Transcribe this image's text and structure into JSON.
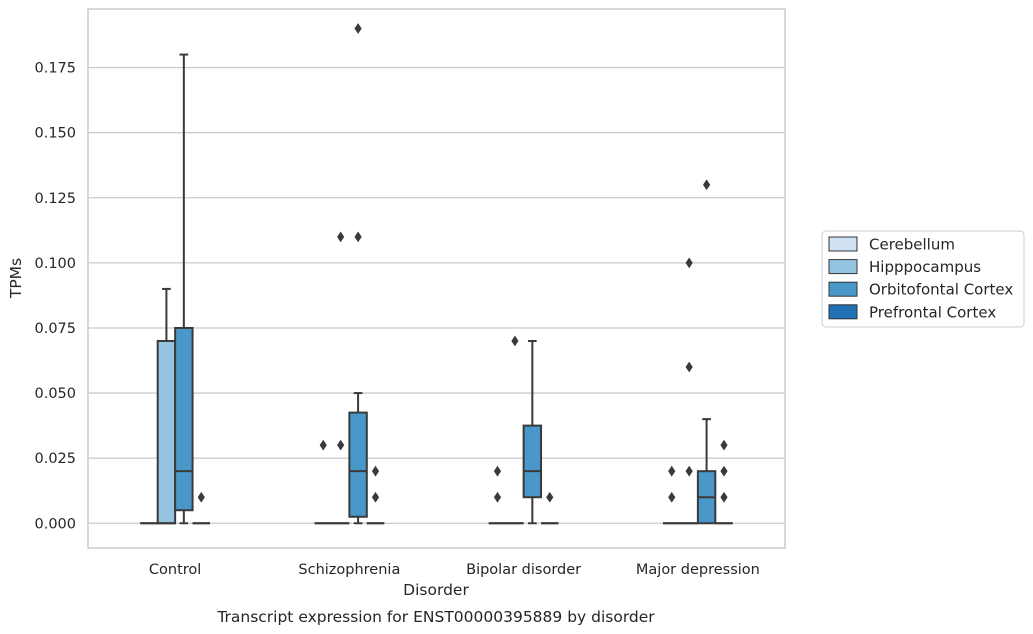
{
  "chart_data": {
    "type": "box",
    "caption": "Transcript expression for ENST00000395889 by disorder",
    "xlabel": "Disorder",
    "ylabel": "TPMs",
    "categories": [
      "Control",
      "Schizophrenia",
      "Bipolar disorder",
      "Major depression"
    ],
    "ylim": [
      -0.0095,
      0.1975
    ],
    "yticks": [
      0.0,
      0.025,
      0.05,
      0.075,
      0.1,
      0.125,
      0.15,
      0.175
    ],
    "ytick_labels": [
      "0.000",
      "0.025",
      "0.050",
      "0.075",
      "0.100",
      "0.125",
      "0.150",
      "0.175"
    ],
    "grid": "horizontal",
    "legend_position": "right",
    "series": [
      {
        "name": "Cerebellum",
        "color": "#d0e1f2",
        "boxes": [
          {
            "q1": 0,
            "median": 0,
            "q3": 0,
            "whislo": 0,
            "whishi": 0,
            "fliers": []
          },
          {
            "q1": 0,
            "median": 0,
            "q3": 0,
            "whislo": 0,
            "whishi": 0,
            "fliers": [
              0.03
            ]
          },
          {
            "q1": 0,
            "median": 0,
            "q3": 0,
            "whislo": 0,
            "whishi": 0,
            "fliers": [
              0.01,
              0.02
            ]
          },
          {
            "q1": 0,
            "median": 0,
            "q3": 0,
            "whislo": 0,
            "whishi": 0,
            "fliers": [
              0.01,
              0.02
            ]
          }
        ]
      },
      {
        "name": "Hipppocampus",
        "color": "#94c4df",
        "boxes": [
          {
            "q1": 0,
            "median": 0,
            "q3": 0.07,
            "whislo": 0,
            "whishi": 0.09,
            "fliers": []
          },
          {
            "q1": 0,
            "median": 0,
            "q3": 0,
            "whislo": 0,
            "whishi": 0,
            "fliers": [
              0.03,
              0.11
            ]
          },
          {
            "q1": 0,
            "median": 0,
            "q3": 0,
            "whislo": 0,
            "whishi": 0,
            "fliers": [
              0.07
            ]
          },
          {
            "q1": 0,
            "median": 0,
            "q3": 0,
            "whislo": 0,
            "whishi": 0,
            "fliers": [
              0.02,
              0.06,
              0.1
            ]
          }
        ]
      },
      {
        "name": "Orbitofontal Cortex",
        "color": "#4a98c9",
        "boxes": [
          {
            "q1": 0.005,
            "median": 0.02,
            "q3": 0.075,
            "whislo": 0,
            "whishi": 0.18,
            "fliers": []
          },
          {
            "q1": 0.0025,
            "median": 0.02,
            "q3": 0.0425,
            "whislo": 0,
            "whishi": 0.05,
            "fliers": [
              0.11,
              0.19
            ]
          },
          {
            "q1": 0.01,
            "median": 0.02,
            "q3": 0.0375,
            "whislo": 0,
            "whishi": 0.07,
            "fliers": []
          },
          {
            "q1": 0,
            "median": 0.01,
            "q3": 0.02,
            "whislo": 0,
            "whishi": 0.04,
            "fliers": [
              0.13
            ]
          }
        ]
      },
      {
        "name": "Prefrontal Cortex",
        "color": "#2171b5",
        "boxes": [
          {
            "q1": 0,
            "median": 0,
            "q3": 0,
            "whislo": 0,
            "whishi": 0,
            "fliers": [
              0.01
            ]
          },
          {
            "q1": 0,
            "median": 0,
            "q3": 0,
            "whislo": 0,
            "whishi": 0,
            "fliers": [
              0.01,
              0.02
            ]
          },
          {
            "q1": 0,
            "median": 0,
            "q3": 0,
            "whislo": 0,
            "whishi": 0,
            "fliers": [
              0.01
            ]
          },
          {
            "q1": 0,
            "median": 0,
            "q3": 0,
            "whislo": 0,
            "whishi": 0,
            "fliers": [
              0.01,
              0.02,
              0.03
            ]
          }
        ]
      }
    ]
  }
}
